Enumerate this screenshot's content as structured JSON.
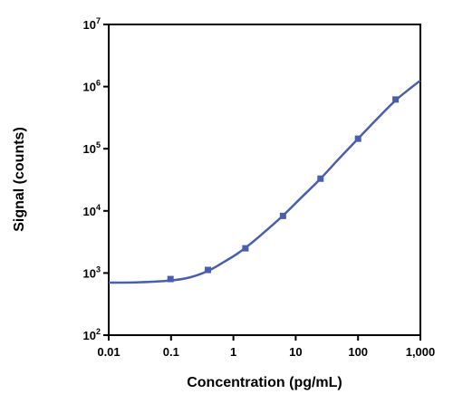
{
  "chart_data": {
    "type": "scatter",
    "xlabel": "Concentration (pg/mL)",
    "ylabel": "Signal (counts)",
    "xscale": "log",
    "yscale": "log",
    "xlim": [
      0.01,
      1000
    ],
    "ylim": [
      100,
      10000000
    ],
    "x_tick_labels": [
      "0.01",
      "0.1",
      "1",
      "10",
      "100",
      "1,000"
    ],
    "y_tick_labels": [
      {
        "base": "10",
        "exp": "2"
      },
      {
        "base": "10",
        "exp": "3"
      },
      {
        "base": "10",
        "exp": "4"
      },
      {
        "base": "10",
        "exp": "5"
      },
      {
        "base": "10",
        "exp": "6"
      },
      {
        "base": "10",
        "exp": "7"
      }
    ],
    "series": [
      {
        "points": [
          {
            "x": 0.098,
            "y": 800
          },
          {
            "x": 0.39,
            "y": 1120
          },
          {
            "x": 1.56,
            "y": 2500
          },
          {
            "x": 6.25,
            "y": 8300
          },
          {
            "x": 25,
            "y": 33000
          },
          {
            "x": 100,
            "y": 145000
          },
          {
            "x": 400,
            "y": 620000
          }
        ],
        "fit_curve": [
          {
            "x": 0.01,
            "y": 700
          },
          {
            "x": 0.03,
            "y": 710
          },
          {
            "x": 0.1,
            "y": 760
          },
          {
            "x": 0.2,
            "y": 850
          },
          {
            "x": 0.39,
            "y": 1080
          },
          {
            "x": 0.7,
            "y": 1500
          },
          {
            "x": 1.2,
            "y": 2100
          },
          {
            "x": 2,
            "y": 3100
          },
          {
            "x": 3.5,
            "y": 5000
          },
          {
            "x": 6.25,
            "y": 8400
          },
          {
            "x": 12,
            "y": 16000
          },
          {
            "x": 25,
            "y": 33000
          },
          {
            "x": 50,
            "y": 70000
          },
          {
            "x": 100,
            "y": 145000
          },
          {
            "x": 200,
            "y": 300000
          },
          {
            "x": 400,
            "y": 600000
          },
          {
            "x": 700,
            "y": 950000
          },
          {
            "x": 1000,
            "y": 1250000
          }
        ]
      }
    ],
    "colors": {
      "series": "#4a5fac",
      "axis": "#000000"
    },
    "grid": false
  }
}
